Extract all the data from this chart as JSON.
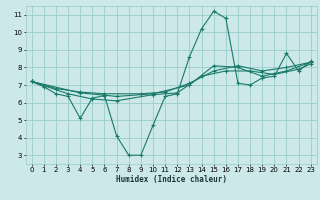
{
  "xlabel": "Humidex (Indice chaleur)",
  "bg_color": "#cce8e8",
  "grid_color": "#99cccc",
  "line_color": "#1a7a6a",
  "xlim": [
    -0.5,
    23.5
  ],
  "ylim": [
    2.5,
    11.5
  ],
  "xticks": [
    0,
    1,
    2,
    3,
    4,
    5,
    6,
    7,
    8,
    9,
    10,
    11,
    12,
    13,
    14,
    15,
    16,
    17,
    18,
    19,
    20,
    21,
    22,
    23
  ],
  "yticks": [
    3,
    4,
    5,
    6,
    7,
    8,
    9,
    10,
    11
  ],
  "series1": [
    [
      0,
      7.2
    ],
    [
      1,
      6.9
    ],
    [
      2,
      6.5
    ],
    [
      3,
      6.35
    ],
    [
      4,
      5.1
    ],
    [
      5,
      6.25
    ],
    [
      6,
      6.4
    ],
    [
      7,
      4.1
    ],
    [
      8,
      3.0
    ],
    [
      9,
      3.0
    ],
    [
      10,
      4.7
    ],
    [
      11,
      6.35
    ],
    [
      12,
      6.5
    ],
    [
      13,
      8.6
    ],
    [
      14,
      10.2
    ],
    [
      15,
      11.2
    ],
    [
      16,
      10.8
    ],
    [
      17,
      7.1
    ],
    [
      18,
      7.0
    ],
    [
      19,
      7.4
    ],
    [
      20,
      7.5
    ],
    [
      21,
      8.8
    ],
    [
      22,
      7.8
    ],
    [
      23,
      8.35
    ]
  ],
  "series2": [
    [
      0,
      7.2
    ],
    [
      2,
      6.8
    ],
    [
      4,
      6.6
    ],
    [
      6,
      6.5
    ],
    [
      9,
      6.5
    ],
    [
      11,
      6.6
    ],
    [
      13,
      7.1
    ],
    [
      15,
      7.8
    ],
    [
      17,
      8.1
    ],
    [
      19,
      7.8
    ],
    [
      21,
      8.0
    ],
    [
      23,
      8.3
    ]
  ],
  "series3": [
    [
      0,
      7.2
    ],
    [
      3,
      6.5
    ],
    [
      5,
      6.2
    ],
    [
      7,
      6.1
    ],
    [
      10,
      6.45
    ],
    [
      12,
      6.55
    ],
    [
      14,
      7.5
    ],
    [
      16,
      7.8
    ],
    [
      18,
      7.8
    ],
    [
      20,
      7.6
    ],
    [
      22,
      7.9
    ],
    [
      23,
      8.2
    ]
  ],
  "series4": [
    [
      0,
      7.2
    ],
    [
      4,
      6.55
    ],
    [
      7,
      6.35
    ],
    [
      10,
      6.5
    ],
    [
      13,
      7.0
    ],
    [
      15,
      8.1
    ],
    [
      17,
      8.0
    ],
    [
      19,
      7.5
    ],
    [
      21,
      7.8
    ],
    [
      23,
      8.3
    ]
  ]
}
